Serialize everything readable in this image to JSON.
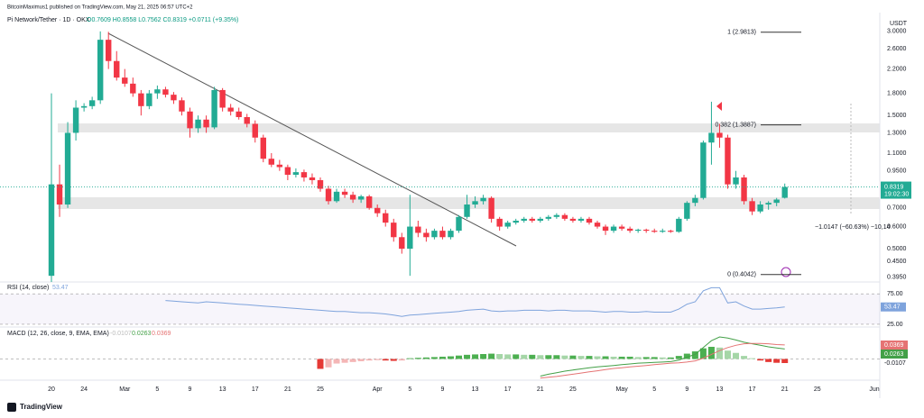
{
  "page": {
    "publisher": "BitcoinMaximus1 published on TradingView.com, May 21, 2025 06:57 UTC+2",
    "logo": "TradingView"
  },
  "chart_data": [
    {
      "type": "candlestick",
      "title": "Pi Network/Tether · 1D · OKX",
      "ohlc_legend": "O0.7609 H0.8558 L0.7562 C0.8319 +0.0711 (+9.35%)",
      "currency": "USDT",
      "countdown": "19:02:30",
      "measure_label": "−1.0147 (−60.63%) −10,14",
      "log_scale": true,
      "up_color": "#22ab94",
      "down_color": "#f23645",
      "ylim": [
        0.383,
        3.4
      ],
      "yticks": [
        {
          "value": 0.395,
          "label": "0.3950"
        },
        {
          "value": 0.45,
          "label": "0.4500"
        },
        {
          "value": 0.5,
          "label": "0.5000"
        },
        {
          "value": 0.6,
          "label": "0.6000"
        },
        {
          "value": 0.7,
          "label": "0.7000"
        },
        {
          "value": 0.95,
          "label": "0.9500"
        },
        {
          "value": 1.1,
          "label": "1.1000"
        },
        {
          "value": 1.3,
          "label": "1.3000"
        },
        {
          "value": 1.5,
          "label": "1.5000"
        },
        {
          "value": 1.8,
          "label": "1.8000"
        },
        {
          "value": 2.2,
          "label": "2.2000"
        },
        {
          "value": 2.6,
          "label": "2.6000"
        },
        {
          "value": 3,
          "label": "3.0000"
        }
      ],
      "fib": [
        {
          "label": "1 (2.9813)",
          "value": 2.9813
        },
        {
          "label": "0.382 (1.3887)",
          "value": 1.3887
        },
        {
          "label": "0 (0.4042)",
          "value": 0.4042
        }
      ],
      "categories": [
        "20",
        null,
        null,
        null,
        "24",
        null,
        null,
        null,
        null,
        "Mar",
        null,
        null,
        null,
        "5",
        null,
        null,
        null,
        "9",
        null,
        null,
        null,
        "13",
        null,
        null,
        null,
        "17",
        null,
        null,
        null,
        "21",
        null,
        null,
        null,
        "25",
        null,
        null,
        null,
        null,
        null,
        null,
        "Apr",
        null,
        null,
        null,
        "5",
        null,
        null,
        null,
        "9",
        null,
        null,
        null,
        "13",
        null,
        null,
        null,
        "17",
        null,
        null,
        null,
        "21",
        null,
        null,
        null,
        "25",
        null,
        null,
        null,
        null,
        null,
        "May",
        null,
        null,
        null,
        "5",
        null,
        null,
        null,
        "9",
        null,
        null,
        null,
        "13",
        null,
        null,
        null,
        "17",
        null,
        null,
        null,
        "21",
        null,
        null,
        null,
        "25",
        null,
        null,
        null,
        null,
        null,
        null,
        "Jun"
      ],
      "ohlc": [
        [
          0.4,
          1.8,
          0.38,
          0.85
        ],
        [
          0.85,
          1.0,
          0.65,
          0.72
        ],
        [
          0.72,
          1.42,
          0.7,
          1.3
        ],
        [
          1.3,
          1.7,
          1.22,
          1.6
        ],
        [
          1.6,
          1.66,
          1.55,
          1.62
        ],
        [
          1.62,
          1.75,
          1.58,
          1.7
        ],
        [
          1.7,
          3.0,
          1.65,
          2.8
        ],
        [
          2.8,
          2.99,
          2.2,
          2.35
        ],
        [
          2.35,
          2.55,
          2.0,
          2.05
        ],
        [
          2.05,
          2.2,
          1.9,
          1.95
        ],
        [
          1.95,
          2.05,
          1.75,
          1.8
        ],
        [
          1.8,
          1.85,
          1.5,
          1.62
        ],
        [
          1.62,
          1.85,
          1.58,
          1.8
        ],
        [
          1.8,
          1.92,
          1.72,
          1.86
        ],
        [
          1.86,
          1.9,
          1.74,
          1.78
        ],
        [
          1.78,
          1.82,
          1.65,
          1.7
        ],
        [
          1.7,
          1.74,
          1.5,
          1.55
        ],
        [
          1.55,
          1.6,
          1.25,
          1.35
        ],
        [
          1.35,
          1.5,
          1.3,
          1.45
        ],
        [
          1.45,
          1.5,
          1.3,
          1.36
        ],
        [
          1.36,
          1.9,
          1.34,
          1.85
        ],
        [
          1.85,
          1.88,
          1.55,
          1.6
        ],
        [
          1.6,
          1.65,
          1.5,
          1.55
        ],
        [
          1.55,
          1.6,
          1.45,
          1.48
        ],
        [
          1.48,
          1.52,
          1.36,
          1.4
        ],
        [
          1.4,
          1.44,
          1.2,
          1.25
        ],
        [
          1.25,
          1.28,
          1.02,
          1.05
        ],
        [
          1.05,
          1.1,
          0.98,
          1.0
        ],
        [
          1.0,
          1.04,
          0.95,
          0.98
        ],
        [
          0.98,
          1.0,
          0.88,
          0.92
        ],
        [
          0.92,
          0.97,
          0.9,
          0.94
        ],
        [
          0.94,
          0.96,
          0.87,
          0.9
        ],
        [
          0.9,
          0.93,
          0.85,
          0.88
        ],
        [
          0.88,
          0.9,
          0.8,
          0.82
        ],
        [
          0.82,
          0.84,
          0.72,
          0.74
        ],
        [
          0.74,
          0.82,
          0.73,
          0.8
        ],
        [
          0.8,
          0.82,
          0.76,
          0.78
        ],
        [
          0.78,
          0.8,
          0.73,
          0.75
        ],
        [
          0.75,
          0.78,
          0.73,
          0.77
        ],
        [
          0.77,
          0.78,
          0.69,
          0.7
        ],
        [
          0.7,
          0.72,
          0.65,
          0.67
        ],
        [
          0.67,
          0.69,
          0.6,
          0.62
        ],
        [
          0.62,
          0.64,
          0.53,
          0.55
        ],
        [
          0.55,
          0.57,
          0.48,
          0.5
        ],
        [
          0.5,
          0.78,
          0.4,
          0.6
        ],
        [
          0.6,
          0.63,
          0.55,
          0.57
        ],
        [
          0.57,
          0.59,
          0.53,
          0.55
        ],
        [
          0.55,
          0.59,
          0.54,
          0.58
        ],
        [
          0.58,
          0.6,
          0.54,
          0.55
        ],
        [
          0.55,
          0.59,
          0.54,
          0.58
        ],
        [
          0.58,
          0.66,
          0.57,
          0.65
        ],
        [
          0.65,
          0.78,
          0.64,
          0.72
        ],
        [
          0.72,
          0.77,
          0.7,
          0.74
        ],
        [
          0.74,
          0.78,
          0.72,
          0.76
        ],
        [
          0.76,
          0.77,
          0.62,
          0.64
        ],
        [
          0.64,
          0.65,
          0.58,
          0.6
        ],
        [
          0.6,
          0.63,
          0.59,
          0.62
        ],
        [
          0.62,
          0.64,
          0.61,
          0.63
        ],
        [
          0.63,
          0.65,
          0.62,
          0.64
        ],
        [
          0.64,
          0.65,
          0.62,
          0.63
        ],
        [
          0.63,
          0.65,
          0.62,
          0.64
        ],
        [
          0.64,
          0.66,
          0.63,
          0.65
        ],
        [
          0.65,
          0.67,
          0.64,
          0.66
        ],
        [
          0.66,
          0.67,
          0.63,
          0.64
        ],
        [
          0.64,
          0.65,
          0.62,
          0.63
        ],
        [
          0.63,
          0.65,
          0.62,
          0.64
        ],
        [
          0.64,
          0.65,
          0.61,
          0.62
        ],
        [
          0.62,
          0.63,
          0.59,
          0.6
        ],
        [
          0.6,
          0.61,
          0.56,
          0.58
        ],
        [
          0.58,
          0.61,
          0.57,
          0.6
        ],
        [
          0.6,
          0.61,
          0.58,
          0.59
        ],
        [
          0.59,
          0.6,
          0.57,
          0.58
        ],
        [
          0.58,
          0.59,
          0.57,
          0.585
        ],
        [
          0.585,
          0.59,
          0.57,
          0.58
        ],
        [
          0.58,
          0.59,
          0.57,
          0.575
        ],
        [
          0.575,
          0.59,
          0.57,
          0.58
        ],
        [
          0.58,
          0.585,
          0.57,
          0.575
        ],
        [
          0.575,
          0.65,
          0.57,
          0.64
        ],
        [
          0.64,
          0.74,
          0.63,
          0.73
        ],
        [
          0.73,
          0.78,
          0.71,
          0.76
        ],
        [
          0.76,
          1.22,
          0.75,
          1.2
        ],
        [
          1.2,
          1.68,
          1.0,
          1.3
        ],
        [
          1.3,
          1.4,
          1.15,
          1.25
        ],
        [
          1.25,
          1.28,
          0.82,
          0.85
        ],
        [
          0.85,
          0.95,
          0.82,
          0.9
        ],
        [
          0.9,
          0.92,
          0.72,
          0.74
        ],
        [
          0.74,
          0.76,
          0.66,
          0.68
        ],
        [
          0.68,
          0.74,
          0.67,
          0.72
        ],
        [
          0.72,
          0.74,
          0.69,
          0.73
        ],
        [
          0.73,
          0.76,
          0.71,
          0.75
        ],
        [
          0.7609,
          0.8558,
          0.7562,
          0.8319
        ],
        null,
        null,
        null,
        null,
        null,
        null,
        null,
        null,
        null,
        null,
        null
      ]
    },
    {
      "type": "line",
      "title": "RSI (14, close)",
      "color": "#7ea3dc",
      "ylim": [
        22,
        93
      ],
      "yticks": [
        {
          "value": 75,
          "label": "75.00"
        },
        {
          "value": 25,
          "label": "25.00"
        }
      ],
      "values": [
        null,
        null,
        null,
        null,
        null,
        null,
        null,
        null,
        null,
        null,
        null,
        null,
        null,
        null,
        64,
        63,
        62,
        61,
        60,
        62,
        61,
        60,
        59,
        58,
        57,
        56,
        55,
        54,
        53,
        52,
        51,
        50,
        49,
        48,
        47,
        46,
        46,
        45,
        44,
        44,
        43,
        42,
        40,
        38,
        40,
        41,
        42,
        43,
        44,
        45,
        46,
        48,
        49,
        50,
        47,
        46,
        47,
        47,
        48,
        48,
        48,
        47,
        48,
        48,
        47,
        47,
        47,
        46,
        45,
        46,
        46,
        45,
        45,
        46,
        45,
        45,
        45,
        50,
        58,
        62,
        80,
        85,
        85,
        60,
        62,
        55,
        50,
        50,
        51,
        52,
        53.47,
        null,
        null,
        null,
        null,
        null,
        null,
        null,
        null,
        null,
        null,
        null
      ]
    },
    {
      "type": "bar",
      "title": "MACD (12, 26, close, 9, EMA, EMA)",
      "ylim": [
        -0.051,
        0.077
      ],
      "hist_colors": [
        "#4caf50",
        "#a5d6a7",
        "#e53935",
        "#f4b6b6"
      ],
      "values": [
        null,
        null,
        null,
        null,
        null,
        null,
        null,
        null,
        null,
        null,
        null,
        null,
        null,
        null,
        null,
        null,
        null,
        null,
        null,
        null,
        null,
        null,
        null,
        null,
        null,
        null,
        null,
        null,
        null,
        null,
        null,
        null,
        null,
        -0.026,
        -0.022,
        -0.012,
        -0.01,
        -0.008,
        -0.006,
        -0.004,
        -0.003,
        -0.004,
        -0.005,
        -0.004,
        0.002,
        0.003,
        0.004,
        0.005,
        0.006,
        0.007,
        0.009,
        0.011,
        0.012,
        0.013,
        0.014,
        0.013,
        0.012,
        0.012,
        0.011,
        0.011,
        0.01,
        0.01,
        0.01,
        0.009,
        0.009,
        0.008,
        0.008,
        0.007,
        0.007,
        0.006,
        0.006,
        0.006,
        0.005,
        0.005,
        0.005,
        0.004,
        0.004,
        0.008,
        0.014,
        0.02,
        0.028,
        0.032,
        0.03,
        0.022,
        0.016,
        0.008,
        0.002,
        -0.004,
        -0.008,
        -0.01,
        -0.0107,
        null,
        null,
        null,
        null,
        null,
        null,
        null,
        null,
        null,
        null,
        null
      ],
      "series": [
        {
          "color": "#43a047",
          "values": [
            null,
            null,
            null,
            null,
            null,
            null,
            null,
            null,
            null,
            null,
            null,
            null,
            null,
            null,
            null,
            null,
            null,
            null,
            null,
            null,
            null,
            null,
            null,
            null,
            null,
            null,
            null,
            null,
            null,
            null,
            null,
            null,
            null,
            null,
            null,
            null,
            null,
            null,
            null,
            null,
            null,
            null,
            null,
            null,
            null,
            null,
            null,
            null,
            null,
            null,
            null,
            null,
            null,
            null,
            null,
            null,
            null,
            null,
            null,
            null,
            -0.045,
            -0.04,
            -0.036,
            -0.032,
            -0.029,
            -0.026,
            -0.023,
            -0.021,
            -0.019,
            -0.017,
            -0.015,
            -0.013,
            -0.011,
            -0.01,
            -0.009,
            -0.008,
            -0.007,
            -0.003,
            0.005,
            0.012,
            0.03,
            0.048,
            0.058,
            0.055,
            0.05,
            0.044,
            0.04,
            0.036,
            0.032,
            0.029,
            0.0263,
            null,
            null,
            null,
            null,
            null,
            null,
            null,
            null,
            null,
            null,
            null
          ]
        },
        {
          "color": "#e57373",
          "values": [
            null,
            null,
            null,
            null,
            null,
            null,
            null,
            null,
            null,
            null,
            null,
            null,
            null,
            null,
            null,
            null,
            null,
            null,
            null,
            null,
            null,
            null,
            null,
            null,
            null,
            null,
            null,
            null,
            null,
            null,
            null,
            null,
            null,
            null,
            null,
            null,
            null,
            null,
            null,
            null,
            null,
            null,
            null,
            null,
            null,
            null,
            null,
            null,
            null,
            null,
            null,
            null,
            null,
            null,
            null,
            null,
            null,
            null,
            null,
            null,
            -0.05,
            -0.048,
            -0.046,
            -0.043,
            -0.04,
            -0.037,
            -0.034,
            -0.031,
            -0.028,
            -0.025,
            -0.023,
            -0.021,
            -0.019,
            -0.017,
            -0.015,
            -0.013,
            -0.011,
            -0.01,
            -0.008,
            -0.005,
            0.002,
            0.012,
            0.022,
            0.03,
            0.036,
            0.04,
            0.041,
            0.041,
            0.04,
            0.038,
            0.0369,
            null,
            null,
            null,
            null,
            null,
            null,
            null,
            null,
            null,
            null,
            null
          ]
        }
      ]
    }
  ]
}
